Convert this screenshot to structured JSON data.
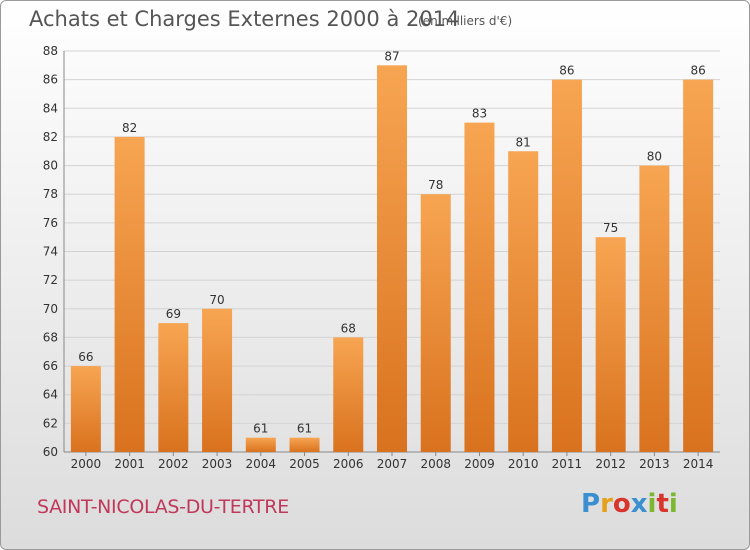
{
  "header": {
    "title": "Achats et Charges Externes 2000 à 2014",
    "subtitle": "(en milliers d'€)"
  },
  "footer": {
    "commune": "SAINT-NICOLAS-DU-TERTRE",
    "logo_text": "Proxiti",
    "logo_colors": [
      "#3a8fd1",
      "#e5a11b",
      "#d9342b",
      "#3a8fd1",
      "#7cb82f",
      "#d9342b",
      "#7cb82f"
    ]
  },
  "chart_data": {
    "type": "bar",
    "title": "Achats et Charges Externes 2000 à 2014",
    "subtitle": "(en milliers d'€)",
    "xlabel": "",
    "ylabel": "",
    "categories": [
      "2000",
      "2001",
      "2002",
      "2003",
      "2004",
      "2005",
      "2006",
      "2007",
      "2008",
      "2009",
      "2010",
      "2011",
      "2012",
      "2013",
      "2014"
    ],
    "values": [
      66,
      82,
      69,
      70,
      61,
      61,
      68,
      87,
      78,
      83,
      81,
      86,
      75,
      80,
      86
    ],
    "ylim": [
      60,
      88
    ],
    "yticks": [
      60,
      62,
      64,
      66,
      68,
      70,
      72,
      74,
      76,
      78,
      80,
      82,
      84,
      86,
      88
    ],
    "grid": true,
    "bar_color_top": "#f7a552",
    "bar_color_bottom": "#d9721e"
  }
}
